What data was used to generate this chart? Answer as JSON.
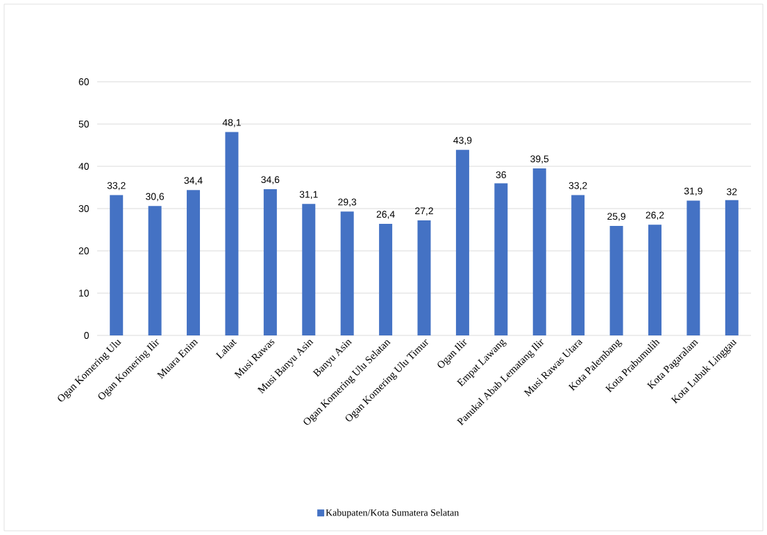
{
  "chart_data": {
    "type": "bar",
    "categories": [
      "Ogan Komering Ulu",
      "Ogan Komering Ilir",
      "Muara Enim",
      "Lahat",
      "Musi Rawas",
      "Musi Banyu Asin",
      "Banyu Asin",
      "Ogan Komering Ulu Selatan",
      "Ogan Komering Ulu Timur",
      "Ogan Ilir",
      "Empat Lawang",
      "Panukal Abab Lematang Ilir",
      "Musi Rawas Utara",
      "Kota Palembang",
      "Kota Prabumulih",
      "Kota Pagaralam",
      "Kota Lubuk Linggau"
    ],
    "series": [
      {
        "name": "Kabupaten/Kota Sumatera Selatan",
        "color": "#4472c4",
        "values": [
          33.2,
          30.6,
          34.4,
          48.1,
          34.6,
          31.1,
          29.3,
          26.4,
          27.2,
          43.9,
          36,
          39.5,
          33.2,
          25.9,
          26.2,
          31.9,
          32
        ],
        "value_labels": [
          "33,2",
          "30,6",
          "34,4",
          "48,1",
          "34,6",
          "31,1",
          "29,3",
          "26,4",
          "27,2",
          "43,9",
          "36",
          "39,5",
          "33,2",
          "25,9",
          "26,2",
          "31,9",
          "32"
        ]
      }
    ],
    "ylim": [
      0,
      60
    ],
    "yticks": [
      0,
      10,
      20,
      30,
      40,
      50,
      60
    ],
    "grid": "y",
    "legend": "bottom"
  }
}
